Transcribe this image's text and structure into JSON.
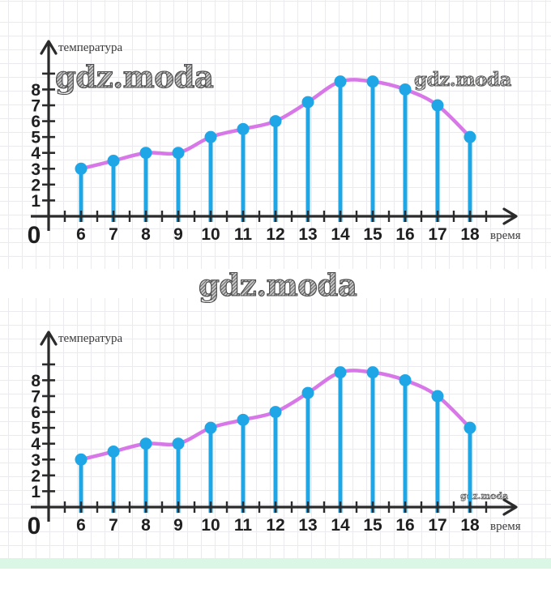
{
  "watermarks": {
    "top_left": "gdz.moda",
    "top_right": "gdz.moda",
    "center": "gdz.moda",
    "bottom_small": "gdz.moda"
  },
  "chart_data": [
    {
      "type": "line",
      "x": [
        6,
        7,
        8,
        9,
        10,
        11,
        12,
        13,
        14,
        15,
        16,
        17,
        18
      ],
      "values": [
        3,
        3.5,
        4,
        4,
        5,
        5.5,
        6,
        7.2,
        8.5,
        8.5,
        8,
        7,
        5
      ],
      "xlabel": "время",
      "ylabel": "температура",
      "origin_label": "0",
      "yticks": [
        1,
        2,
        3,
        4,
        5,
        6,
        7,
        8
      ],
      "ylim": [
        0,
        9.5
      ],
      "line_color": "#d878e8",
      "stem_color": "#1ea6e6",
      "marker_color": "#1ea6e6",
      "axis_color": "#2b2b2b"
    },
    {
      "type": "line",
      "x": [
        6,
        7,
        8,
        9,
        10,
        11,
        12,
        13,
        14,
        15,
        16,
        17,
        18
      ],
      "values": [
        3,
        3.5,
        4,
        4,
        5,
        5.5,
        6,
        7.2,
        8.5,
        8.5,
        8,
        7,
        5
      ],
      "xlabel": "время",
      "ylabel": "температура",
      "origin_label": "0",
      "yticks": [
        1,
        2,
        3,
        4,
        5,
        6,
        7,
        8
      ],
      "ylim": [
        0,
        9.5
      ],
      "line_color": "#d878e8",
      "stem_color": "#1ea6e6",
      "marker_color": "#1ea6e6",
      "axis_color": "#2b2b2b"
    }
  ],
  "colors": {
    "paper_grid": "#eaeaef",
    "bottom_strip": "#d9f7e4",
    "background": "#ffffff"
  }
}
